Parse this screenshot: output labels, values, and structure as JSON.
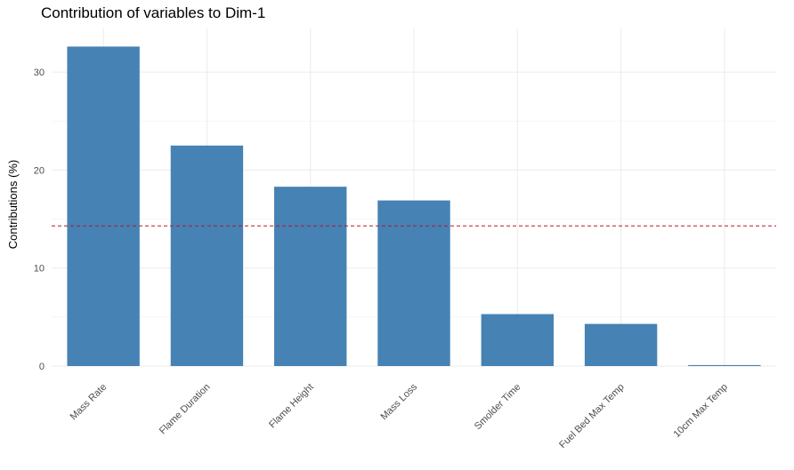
{
  "chart_data": {
    "type": "bar",
    "title": "Contribution of variables to Dim-1",
    "xlabel": "",
    "ylabel": "Contributions (%)",
    "categories": [
      "Mass Rate",
      "Flame Duration",
      "Flame Height",
      "Mass Loss",
      "Smolder Time",
      "Fuel Bed Max Temp",
      "10cm Max Temp"
    ],
    "values": [
      32.6,
      22.5,
      18.3,
      16.9,
      5.3,
      4.3,
      0.1
    ],
    "ylim": [
      0,
      33
    ],
    "yticks": [
      0,
      10,
      20,
      30
    ],
    "reference_line": {
      "value": 14.3,
      "color": "#b2182b",
      "style": "dashed"
    },
    "bar_color": "#4682b4",
    "grid": true,
    "legend": "none"
  }
}
